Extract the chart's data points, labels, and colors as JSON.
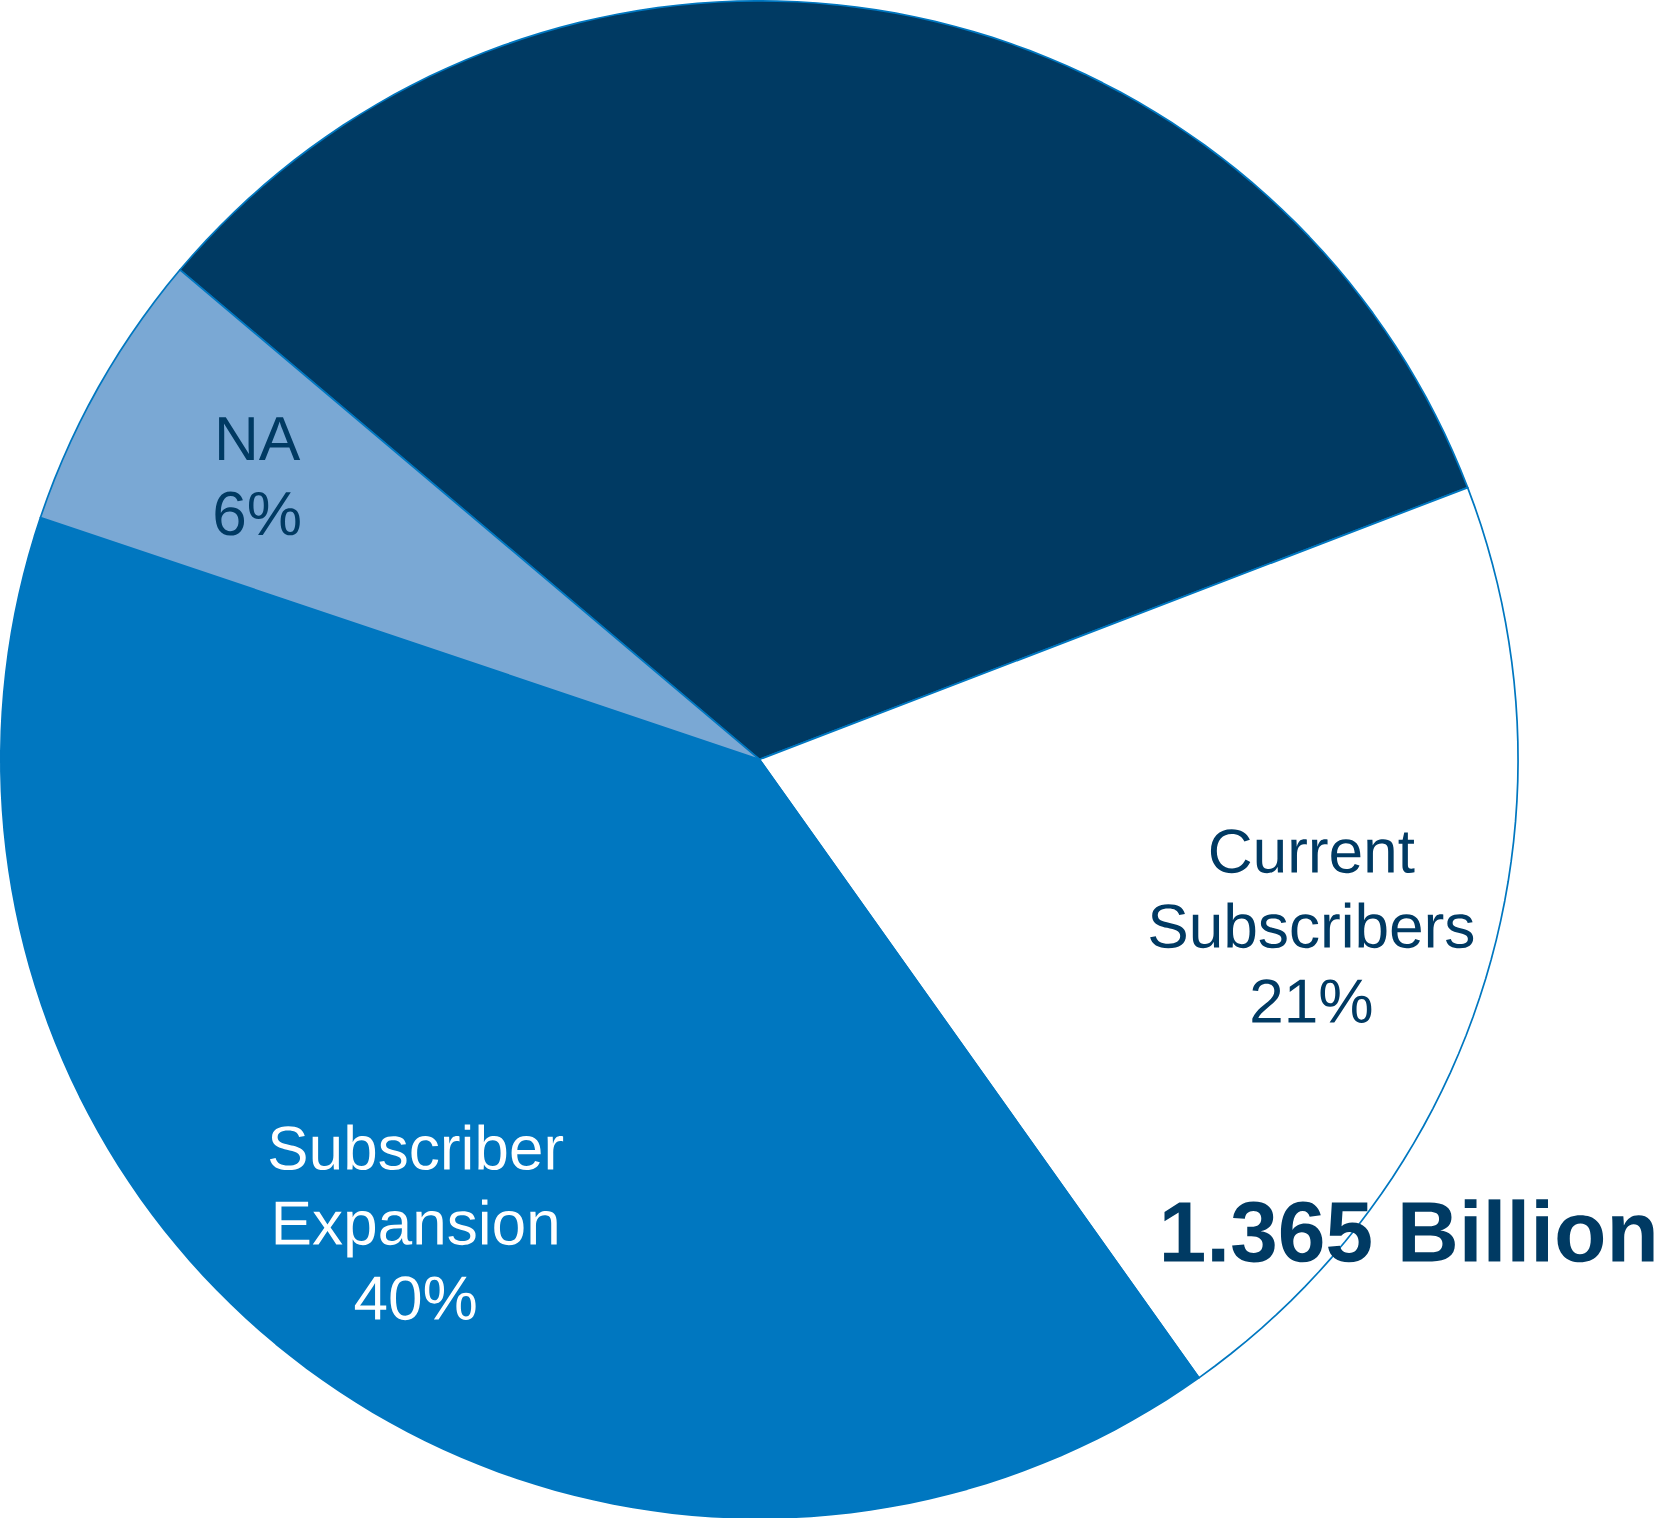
{
  "chart_data": {
    "type": "pie",
    "categories": [
      null,
      "Current Subscribers",
      "Subscriber Expansion",
      "NA"
    ],
    "values": [
      33,
      21,
      40,
      6
    ],
    "colors": [
      "#003a63",
      "#ffffff",
      "#0077c0",
      "#7aa8d4"
    ],
    "value_labels": [
      null,
      "21%",
      "40%",
      "6%"
    ],
    "annotations": [
      "1.365 Billion"
    ]
  }
}
